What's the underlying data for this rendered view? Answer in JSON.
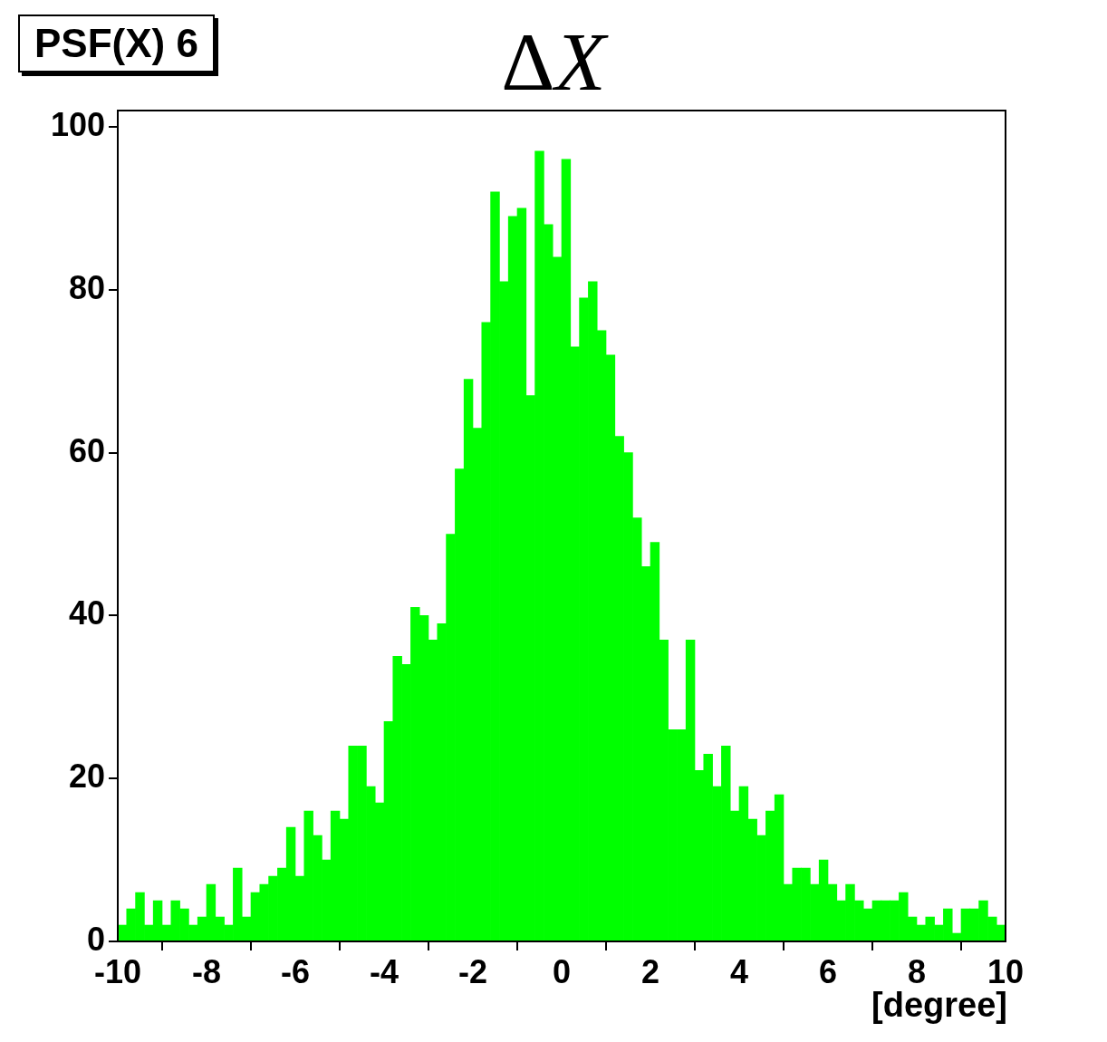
{
  "chart_data": {
    "type": "histogram",
    "title": "ΔX",
    "xlabel": "[degree]",
    "annotations": [
      "PSF(X) 6"
    ],
    "bins": [
      -10,
      -9.8,
      -9.6,
      -9.4,
      -9.2,
      -9,
      -8.8,
      -8.6,
      -8.4,
      -8.2,
      -8,
      -7.8,
      -7.6,
      -7.4,
      -7.2,
      -7,
      -6.8,
      -6.6,
      -6.4,
      -6.2,
      -6,
      -5.8,
      -5.6,
      -5.4,
      -5.2,
      -5,
      -4.8,
      -4.6,
      -4.4,
      -4.2,
      -4,
      -3.8,
      -3.6,
      -3.4,
      -3.2,
      -3,
      -2.8,
      -2.6,
      -2.4,
      -2.2,
      -2,
      -1.8,
      -1.6,
      -1.4,
      -1.2,
      -1,
      -0.8,
      -0.6,
      -0.4,
      -0.2,
      0,
      0.2,
      0.4,
      0.6,
      0.8,
      1,
      1.2,
      1.4,
      1.6,
      1.8,
      2,
      2.2,
      2.4,
      2.6,
      2.8,
      3,
      3.2,
      3.4,
      3.6,
      3.8,
      4,
      4.2,
      4.4,
      4.6,
      4.8,
      5,
      5.2,
      5.4,
      5.6,
      5.8,
      6,
      6.2,
      6.4,
      6.6,
      6.8,
      7,
      7.2,
      7.4,
      7.6,
      7.8,
      8,
      8.2,
      8.4,
      8.6,
      8.8,
      9,
      9.2,
      9.4,
      9.6,
      9.8,
      10
    ],
    "values": [
      2,
      4,
      6,
      2,
      5,
      2,
      5,
      4,
      2,
      3,
      7,
      3,
      2,
      9,
      3,
      6,
      7,
      8,
      9,
      14,
      8,
      16,
      13,
      10,
      16,
      15,
      24,
      24,
      19,
      17,
      27,
      35,
      34,
      41,
      40,
      37,
      39,
      50,
      58,
      69,
      63,
      76,
      92,
      81,
      89,
      90,
      67,
      97,
      88,
      84,
      96,
      73,
      79,
      81,
      75,
      72,
      62,
      60,
      52,
      46,
      49,
      37,
      26,
      26,
      37,
      21,
      23,
      19,
      24,
      16,
      19,
      15,
      13,
      16,
      18,
      7,
      9,
      9,
      7,
      10,
      7,
      5,
      7,
      5,
      4,
      5,
      5,
      5,
      6,
      3,
      2,
      3,
      2,
      4,
      1,
      4,
      4,
      5,
      3,
      2
    ],
    "color": "#00ff00",
    "xlim": [
      -10,
      10
    ],
    "xticks": [
      -10,
      -8,
      -6,
      -4,
      -2,
      0,
      2,
      4,
      6,
      8,
      10
    ],
    "ylim": [
      0,
      102
    ],
    "yticks": [
      0,
      20,
      40,
      60,
      80,
      100
    ],
    "grid": false
  }
}
